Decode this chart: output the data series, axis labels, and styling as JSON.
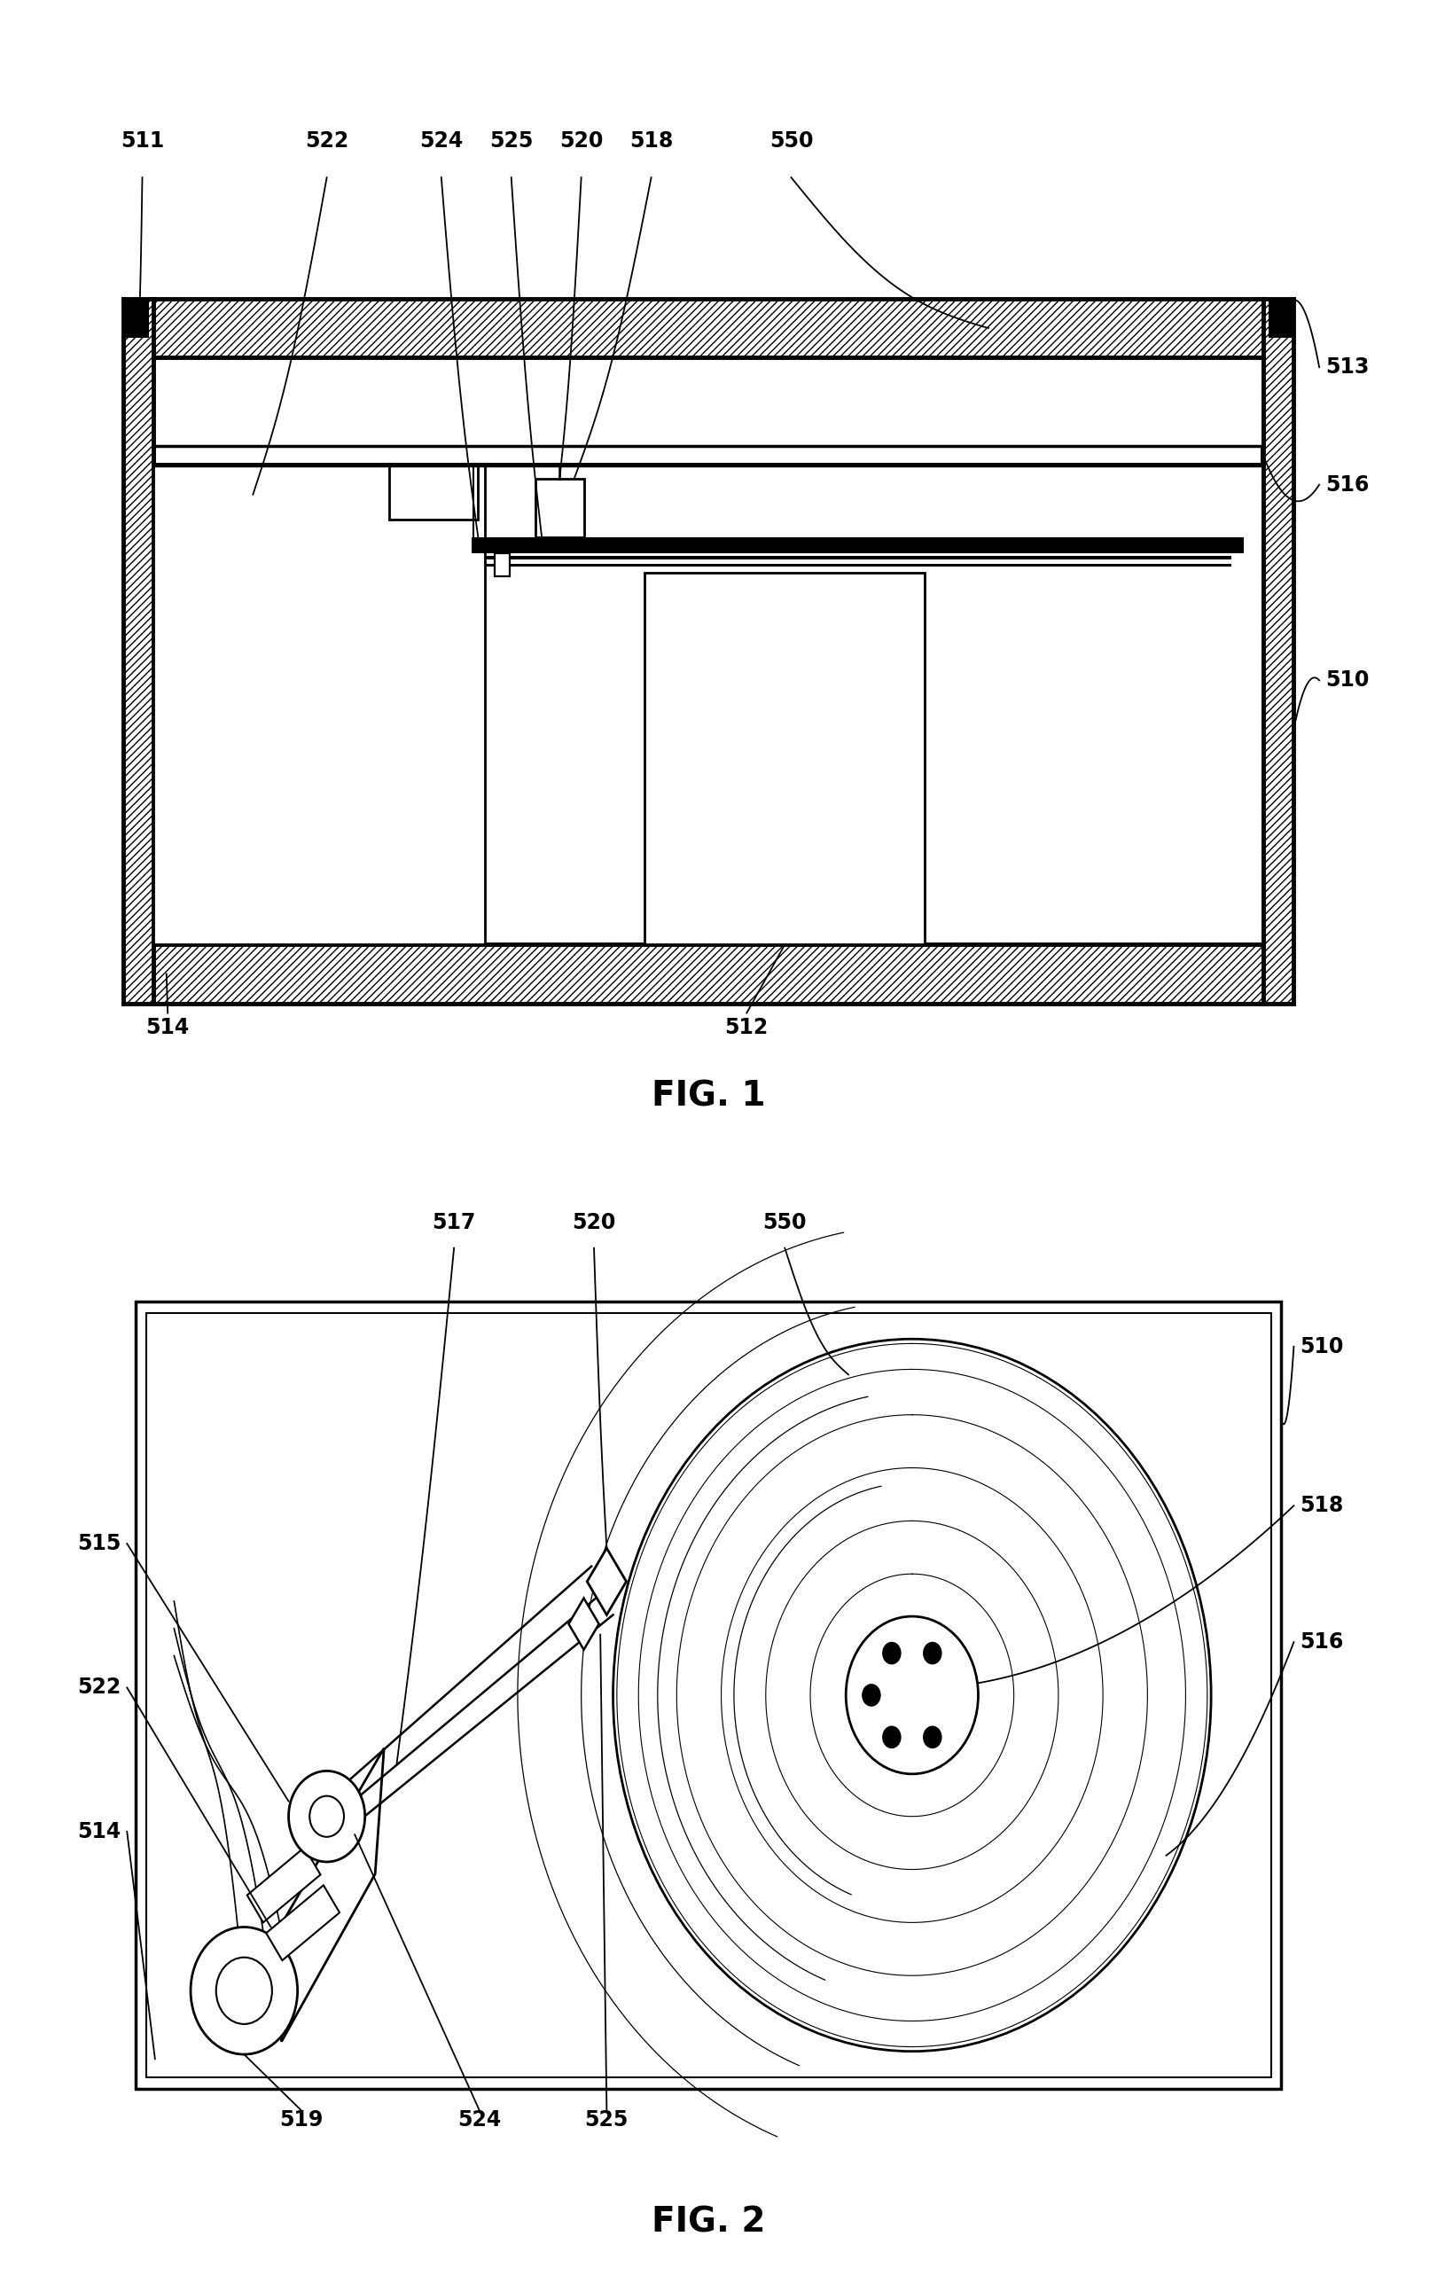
{
  "background_color": "#ffffff",
  "fig_width": 16.31,
  "fig_height": 25.84,
  "fig1_caption": "FIG. 1",
  "fig2_caption": "FIG. 2",
  "label_fontsize": 17,
  "caption_fontsize": 28
}
